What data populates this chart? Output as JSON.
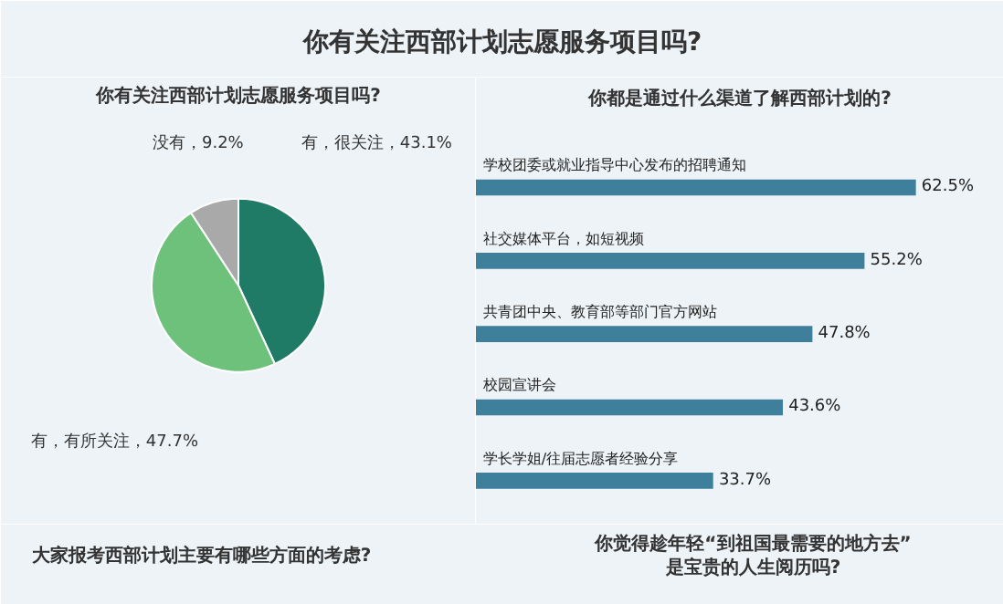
{
  "chart_data": [
    {
      "type": "other",
      "title": "你有关注西部计划志愿服务项目吗?",
      "annotations": [
        "大家报考西部计划主要有哪些方面的考虑?",
        "你觉得趁年轻“到祖国最需要的地方去”\n是宝贵的人生阅历吗?"
      ]
    },
    {
      "type": "pie",
      "title": "你有关注西部计划志愿服务项目吗?",
      "categories": [
        "有，很关注",
        "有，有所关注",
        "没有"
      ],
      "values": [
        43.1,
        47.7,
        9.2
      ],
      "colors": [
        "#1f7a66",
        "#6dc17b",
        "#a9a9a9"
      ],
      "value_labels": [
        "43.1%",
        "47.7%",
        "9.2%"
      ]
    },
    {
      "type": "bar",
      "orientation": "horizontal",
      "title": "你都是通过什么渠道了解西部计划的?",
      "categories": [
        "学校团委或就业指导中心发布的招聘通知",
        "社交媒体平台，如短视频",
        "共青团中央、教育部等部门官方网站",
        "校园宣讲会",
        "学长学姐/往届志愿者经验分享"
      ],
      "values": [
        62.5,
        55.2,
        47.8,
        43.6,
        33.7
      ],
      "color": "#3e7f9b",
      "value_labels": [
        "62.5%",
        "55.2%",
        "47.8%",
        "43.6%",
        "33.7%"
      ]
    }
  ]
}
